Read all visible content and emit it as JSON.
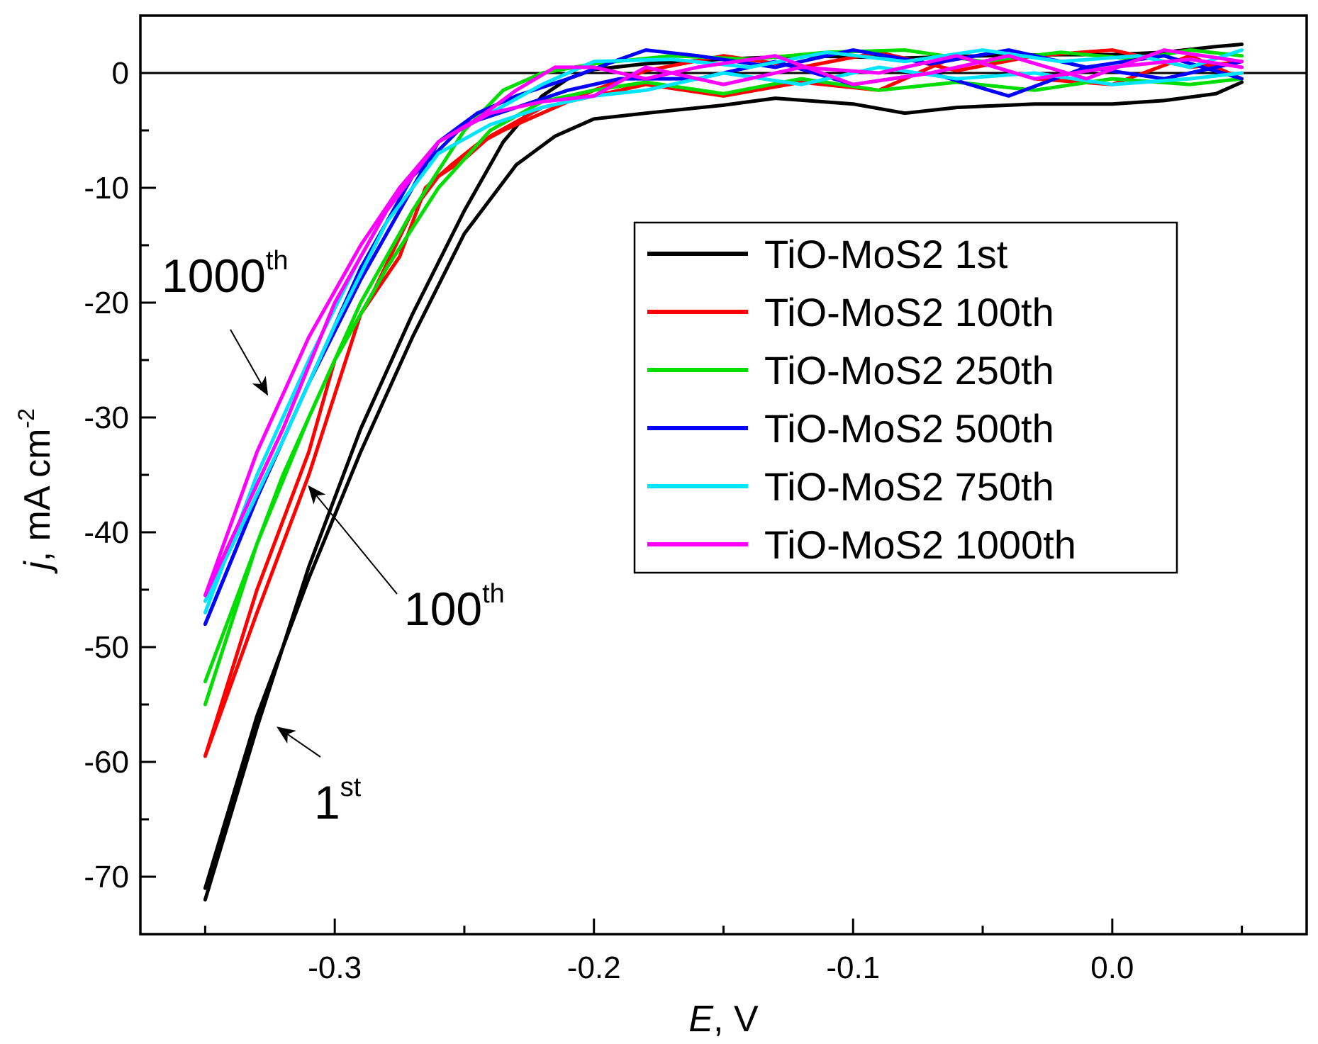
{
  "chart_data": {
    "type": "line",
    "title": "",
    "xlabel": {
      "symbol": "E",
      "unit": ", V"
    },
    "ylabel": {
      "symbol": "j",
      "unit": ", mA cm",
      "exponent": "-2"
    },
    "xlim": [
      -0.375,
      0.075
    ],
    "ylim": [
      -75,
      5
    ],
    "x_ticks": [
      -0.3,
      -0.2,
      -0.1,
      0.0
    ],
    "x_tick_labels": [
      "-0.3",
      "-0.2",
      "-0.1",
      "0.0"
    ],
    "y_ticks": [
      0,
      -10,
      -20,
      -30,
      -40,
      -50,
      -60,
      -70
    ],
    "y_tick_labels": [
      "0",
      "-10",
      "-20",
      "-30",
      "-40",
      "-50",
      "-60",
      "-70"
    ],
    "grid": false,
    "zero_line": true,
    "legend_position": "center-right",
    "series": [
      {
        "name": "TiO-MoS2 1st",
        "color": "#000000",
        "forward": [
          [
            -0.35,
            -72
          ],
          [
            -0.33,
            -57
          ],
          [
            -0.31,
            -43
          ],
          [
            -0.29,
            -31
          ],
          [
            -0.27,
            -21
          ],
          [
            -0.25,
            -12
          ],
          [
            -0.235,
            -6
          ],
          [
            -0.22,
            -2
          ],
          [
            -0.21,
            -0.5
          ],
          [
            -0.2,
            0.3
          ],
          [
            -0.18,
            0.8
          ],
          [
            -0.15,
            1.2
          ],
          [
            -0.12,
            1.5
          ],
          [
            -0.08,
            1.3
          ],
          [
            -0.05,
            1.5
          ],
          [
            -0.02,
            1.6
          ],
          [
            0.0,
            1.6
          ],
          [
            0.02,
            1.8
          ],
          [
            0.04,
            2.3
          ],
          [
            0.05,
            2.5
          ]
        ],
        "reverse": [
          [
            0.05,
            -0.8
          ],
          [
            0.04,
            -1.8
          ],
          [
            0.02,
            -2.4
          ],
          [
            0.0,
            -2.7
          ],
          [
            -0.03,
            -2.7
          ],
          [
            -0.06,
            -3.0
          ],
          [
            -0.08,
            -3.5
          ],
          [
            -0.1,
            -2.7
          ],
          [
            -0.13,
            -2.2
          ],
          [
            -0.15,
            -2.8
          ],
          [
            -0.18,
            -3.5
          ],
          [
            -0.2,
            -4.0
          ],
          [
            -0.215,
            -5.5
          ],
          [
            -0.23,
            -8
          ],
          [
            -0.25,
            -14
          ],
          [
            -0.27,
            -23
          ],
          [
            -0.29,
            -33
          ],
          [
            -0.31,
            -44
          ],
          [
            -0.33,
            -56
          ],
          [
            -0.35,
            -71
          ]
        ]
      },
      {
        "name": "TiO-MoS2 100th",
        "color": "#ff0000",
        "forward": [
          [
            -0.35,
            -59.5
          ],
          [
            -0.33,
            -47
          ],
          [
            -0.31,
            -35
          ],
          [
            -0.3,
            -28
          ],
          [
            -0.29,
            -21
          ],
          [
            -0.275,
            -16
          ],
          [
            -0.265,
            -10
          ],
          [
            -0.255,
            -8
          ],
          [
            -0.245,
            -6.2
          ],
          [
            -0.235,
            -5
          ],
          [
            -0.22,
            -3.5
          ],
          [
            -0.2,
            -1.5
          ],
          [
            -0.18,
            0.2
          ],
          [
            -0.15,
            1.5
          ],
          [
            -0.12,
            0.5
          ],
          [
            -0.09,
            1.8
          ],
          [
            -0.06,
            0.2
          ],
          [
            -0.03,
            1.5
          ],
          [
            0.0,
            2.0
          ],
          [
            0.03,
            0.5
          ],
          [
            0.05,
            1.0
          ]
        ],
        "reverse": [
          [
            0.05,
            -0.5
          ],
          [
            0.03,
            1.5
          ],
          [
            0.0,
            -1.0
          ],
          [
            -0.03,
            -0.5
          ],
          [
            -0.06,
            1.5
          ],
          [
            -0.09,
            -1.5
          ],
          [
            -0.12,
            -0.8
          ],
          [
            -0.15,
            -2.0
          ],
          [
            -0.18,
            -1.0
          ],
          [
            -0.2,
            -2.0
          ],
          [
            -0.22,
            -3.0
          ],
          [
            -0.24,
            -5.5
          ],
          [
            -0.25,
            -7.5
          ],
          [
            -0.26,
            -9
          ],
          [
            -0.27,
            -12
          ],
          [
            -0.285,
            -19
          ],
          [
            -0.3,
            -25
          ],
          [
            -0.31,
            -33
          ],
          [
            -0.33,
            -45
          ],
          [
            -0.35,
            -59.5
          ]
        ]
      },
      {
        "name": "TiO-MoS2 250th",
        "color": "#00dd00",
        "forward": [
          [
            -0.35,
            -55
          ],
          [
            -0.33,
            -41
          ],
          [
            -0.31,
            -30
          ],
          [
            -0.29,
            -20
          ],
          [
            -0.27,
            -12
          ],
          [
            -0.25,
            -5
          ],
          [
            -0.235,
            -1.5
          ],
          [
            -0.22,
            0.0
          ],
          [
            -0.2,
            0.8
          ],
          [
            -0.17,
            1.5
          ],
          [
            -0.14,
            1.2
          ],
          [
            -0.11,
            1.8
          ],
          [
            -0.08,
            2.0
          ],
          [
            -0.05,
            1.0
          ],
          [
            -0.02,
            1.8
          ],
          [
            0.01,
            1.2
          ],
          [
            0.03,
            2.0
          ],
          [
            0.05,
            1.5
          ]
        ],
        "reverse": [
          [
            0.05,
            -0.5
          ],
          [
            0.03,
            -1.0
          ],
          [
            0.0,
            -0.5
          ],
          [
            -0.03,
            -1.5
          ],
          [
            -0.06,
            -0.8
          ],
          [
            -0.09,
            -1.5
          ],
          [
            -0.12,
            -0.5
          ],
          [
            -0.15,
            -1.8
          ],
          [
            -0.18,
            -0.8
          ],
          [
            -0.2,
            -1.5
          ],
          [
            -0.22,
            -2.5
          ],
          [
            -0.24,
            -5
          ],
          [
            -0.26,
            -10
          ],
          [
            -0.28,
            -17
          ],
          [
            -0.3,
            -25
          ],
          [
            -0.32,
            -35
          ],
          [
            -0.35,
            -53
          ]
        ]
      },
      {
        "name": "TiO-MoS2 500th",
        "color": "#0000ff",
        "forward": [
          [
            -0.35,
            -48
          ],
          [
            -0.33,
            -37
          ],
          [
            -0.31,
            -27
          ],
          [
            -0.29,
            -18
          ],
          [
            -0.275,
            -12
          ],
          [
            -0.26,
            -6
          ],
          [
            -0.245,
            -3.5
          ],
          [
            -0.23,
            -2.0
          ],
          [
            -0.21,
            -0.5
          ],
          [
            -0.19,
            1.2
          ],
          [
            -0.18,
            2.0
          ],
          [
            -0.16,
            1.5
          ],
          [
            -0.13,
            0.5
          ],
          [
            -0.1,
            2.0
          ],
          [
            -0.07,
            0.8
          ],
          [
            -0.04,
            2.0
          ],
          [
            -0.01,
            0.5
          ],
          [
            0.02,
            1.5
          ],
          [
            0.05,
            -0.5
          ]
        ],
        "reverse": [
          [
            0.05,
            1.0
          ],
          [
            0.02,
            -0.5
          ],
          [
            -0.01,
            0.5
          ],
          [
            -0.04,
            -2.0
          ],
          [
            -0.07,
            0.0
          ],
          [
            -0.1,
            -1.0
          ],
          [
            -0.13,
            1.0
          ],
          [
            -0.16,
            -0.5
          ],
          [
            -0.19,
            -0.5
          ],
          [
            -0.21,
            -1.5
          ],
          [
            -0.23,
            -3
          ],
          [
            -0.25,
            -4.5
          ],
          [
            -0.27,
            -9
          ],
          [
            -0.29,
            -17
          ],
          [
            -0.31,
            -27
          ],
          [
            -0.33,
            -37
          ],
          [
            -0.35,
            -48
          ]
        ]
      },
      {
        "name": "TiO-MoS2 750th",
        "color": "#00e5ff",
        "forward": [
          [
            -0.35,
            -47
          ],
          [
            -0.33,
            -35
          ],
          [
            -0.31,
            -25
          ],
          [
            -0.29,
            -16
          ],
          [
            -0.275,
            -10
          ],
          [
            -0.26,
            -6
          ],
          [
            -0.24,
            -3.5
          ],
          [
            -0.22,
            -1.0
          ],
          [
            -0.2,
            1.0
          ],
          [
            -0.17,
            1.2
          ],
          [
            -0.14,
            0.5
          ],
          [
            -0.11,
            1.8
          ],
          [
            -0.08,
            1.0
          ],
          [
            -0.05,
            2.0
          ],
          [
            -0.02,
            1.0
          ],
          [
            0.01,
            1.5
          ],
          [
            0.03,
            0.5
          ],
          [
            0.05,
            2.0
          ]
        ],
        "reverse": [
          [
            0.05,
            0.0
          ],
          [
            0.03,
            -0.5
          ],
          [
            0.0,
            -1.0
          ],
          [
            -0.03,
            0.0
          ],
          [
            -0.06,
            -0.5
          ],
          [
            -0.09,
            0.5
          ],
          [
            -0.12,
            -1.0
          ],
          [
            -0.15,
            0.0
          ],
          [
            -0.18,
            -1.5
          ],
          [
            -0.2,
            -2.0
          ],
          [
            -0.22,
            -3
          ],
          [
            -0.24,
            -4.5
          ],
          [
            -0.26,
            -7
          ],
          [
            -0.28,
            -13
          ],
          [
            -0.3,
            -22
          ],
          [
            -0.32,
            -32
          ],
          [
            -0.35,
            -46
          ]
        ]
      },
      {
        "name": "TiO-MoS2 1000th",
        "color": "#ff00ff",
        "forward": [
          [
            -0.35,
            -45.5
          ],
          [
            -0.33,
            -33
          ],
          [
            -0.31,
            -23
          ],
          [
            -0.29,
            -15
          ],
          [
            -0.275,
            -10
          ],
          [
            -0.26,
            -6
          ],
          [
            -0.245,
            -4
          ],
          [
            -0.23,
            -1.5
          ],
          [
            -0.215,
            0.5
          ],
          [
            -0.2,
            0.5
          ],
          [
            -0.18,
            -0.5
          ],
          [
            -0.16,
            0.5
          ],
          [
            -0.13,
            1.5
          ],
          [
            -0.1,
            -1.0
          ],
          [
            -0.07,
            0.0
          ],
          [
            -0.04,
            1.5
          ],
          [
            -0.01,
            -0.5
          ],
          [
            0.02,
            2.0
          ],
          [
            0.05,
            1.0
          ]
        ],
        "reverse": [
          [
            0.05,
            0.5
          ],
          [
            0.03,
            1.2
          ],
          [
            0.0,
            0.5
          ],
          [
            -0.03,
            -0.5
          ],
          [
            -0.06,
            1.5
          ],
          [
            -0.09,
            0.0
          ],
          [
            -0.12,
            0.5
          ],
          [
            -0.15,
            -1.0
          ],
          [
            -0.18,
            0.5
          ],
          [
            -0.2,
            -2.0
          ],
          [
            -0.22,
            -2.5
          ],
          [
            -0.24,
            -3.5
          ],
          [
            -0.26,
            -6
          ],
          [
            -0.28,
            -12
          ],
          [
            -0.3,
            -20
          ],
          [
            -0.32,
            -31
          ],
          [
            -0.35,
            -45.5
          ]
        ]
      }
    ],
    "annotations": [
      {
        "base": "1000",
        "sup": "th",
        "arrow_to": [
          -0.326,
          -28
        ]
      },
      {
        "base": "100",
        "sup": "th",
        "arrow_to": [
          -0.31,
          -36
        ]
      },
      {
        "base": "1",
        "sup": "st",
        "arrow_to": [
          -0.322,
          -57
        ]
      }
    ]
  }
}
